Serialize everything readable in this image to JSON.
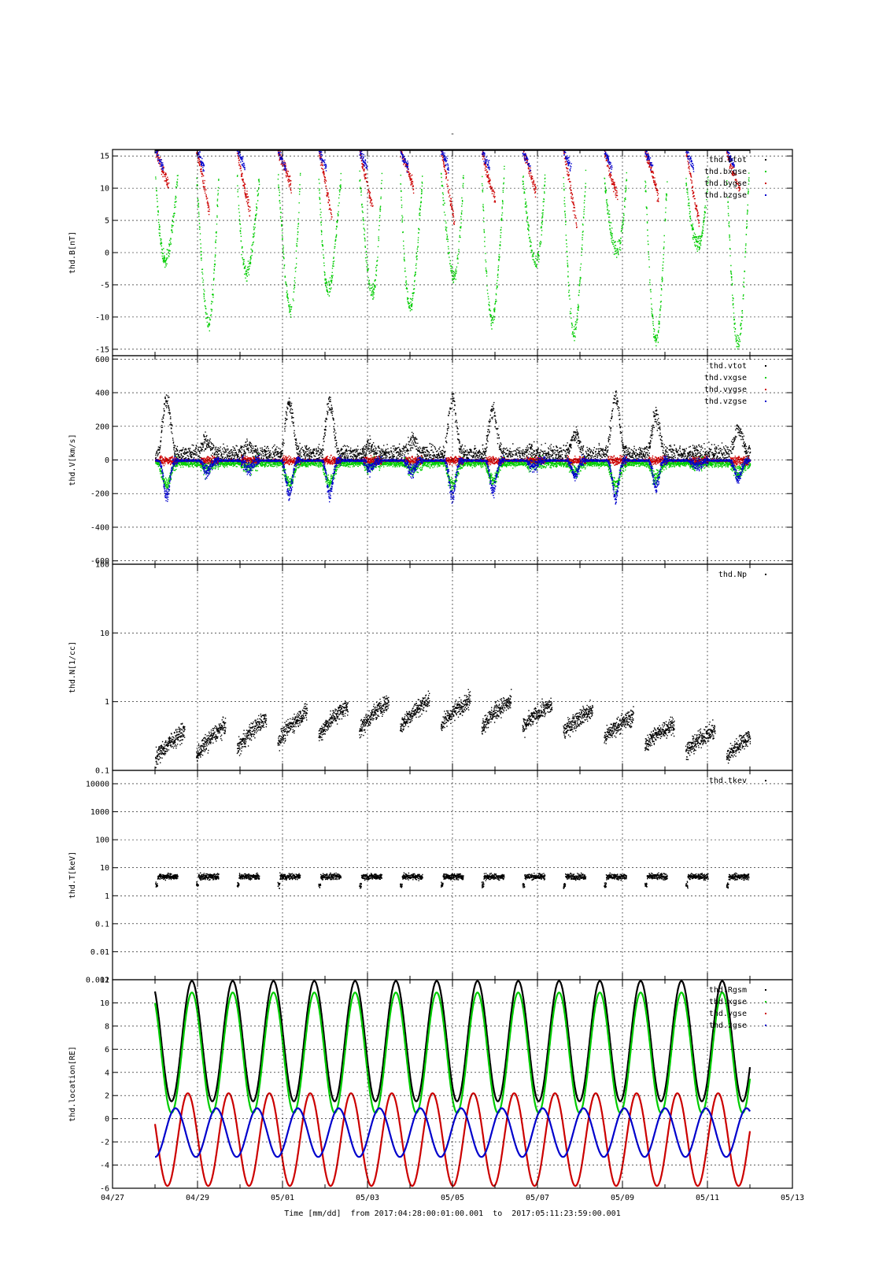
{
  "figure": {
    "title": "-",
    "footer_xlabel": "Time [mm/dd]  from 2017:04:28:00:01:00.001  to  2017:05:11:23:59:00.001",
    "x_ticks": [
      "04/27",
      "04/29",
      "05/01",
      "05/03",
      "05/05",
      "05/07",
      "05/09",
      "05/11",
      "05/13"
    ],
    "x_tick_days": [
      0,
      2,
      4,
      6,
      8,
      10,
      12,
      14,
      16
    ],
    "x_range_days": [
      0,
      16
    ],
    "x_origin": "04/27",
    "data_span_days": [
      1.0,
      15.0
    ]
  },
  "chart_data": [
    {
      "id": "B",
      "type": "scatter",
      "ylabel": "thd.B[nT]",
      "ylim": [
        -16,
        16
      ],
      "y_ticks": [
        -15,
        -10,
        -5,
        0,
        5,
        10,
        15
      ],
      "y_tick_labels": [
        "-15",
        "-10",
        "-5",
        "0",
        "5",
        "10",
        "15"
      ],
      "log": false,
      "grid": true,
      "legend_position": "top-right",
      "series": [
        {
          "name": "thd.btot",
          "color": "#000000"
        },
        {
          "name": "thd.bxgse",
          "color": "#00cc00"
        },
        {
          "name": "thd.bygse",
          "color": "#cc0000"
        },
        {
          "name": "thd.bzgse",
          "color": "#0000cc"
        }
      ]
    },
    {
      "id": "V",
      "type": "scatter",
      "ylabel": "thd.V[km/s]",
      "ylim": [
        -620,
        620
      ],
      "y_ticks": [
        -600,
        -400,
        -200,
        0,
        200,
        400,
        600
      ],
      "y_tick_labels": [
        "-600",
        "-400",
        "-200",
        "0",
        "200",
        "400",
        "600"
      ],
      "log": false,
      "grid": true,
      "legend_position": "top-right",
      "series": [
        {
          "name": "thd.vtot",
          "color": "#000000"
        },
        {
          "name": "thd.vxgse",
          "color": "#00cc00"
        },
        {
          "name": "thd.vygse",
          "color": "#cc0000"
        },
        {
          "name": "thd.vzgse",
          "color": "#0000cc"
        }
      ]
    },
    {
      "id": "N",
      "type": "scatter",
      "ylabel": "thd.N[1/cc]",
      "ylim": [
        0.1,
        100
      ],
      "y_ticks": [
        0.1,
        1,
        10,
        100
      ],
      "y_tick_labels": [
        "0.1",
        "1",
        "10",
        "100"
      ],
      "log": true,
      "grid": true,
      "legend_position": "top-right",
      "series": [
        {
          "name": "thd.Np",
          "color": "#000000"
        }
      ]
    },
    {
      "id": "T",
      "type": "scatter",
      "ylabel": "thd.T[keV]",
      "ylim": [
        0.001,
        30000
      ],
      "y_ticks": [
        0.01,
        0.1,
        1,
        10,
        100,
        1000,
        10000
      ],
      "y_tick_labels": [
        "0.01",
        "0.1",
        "1",
        "10",
        "100",
        "1000",
        "10000"
      ],
      "bottom_label": "0.001",
      "log": true,
      "grid": true,
      "legend_position": "top-right",
      "series": [
        {
          "name": "thd.tkev",
          "color": "#000000"
        }
      ]
    },
    {
      "id": "L",
      "type": "line",
      "ylabel": "thd.location[RE]",
      "ylim": [
        -6,
        12
      ],
      "y_ticks": [
        -6,
        -4,
        -2,
        0,
        2,
        4,
        6,
        8,
        10,
        12
      ],
      "y_tick_labels": [
        "-6",
        "-4",
        "-2",
        "0",
        "2",
        "4",
        "6",
        "8",
        "10",
        "12"
      ],
      "log": false,
      "grid": true,
      "legend_position": "top-right",
      "orbit_period_days": 0.96,
      "series": [
        {
          "name": "thd.Rgsm",
          "color": "#000000"
        },
        {
          "name": "thd.xgse",
          "color": "#00cc00"
        },
        {
          "name": "thd.ygse",
          "color": "#cc0000"
        },
        {
          "name": "thd.zgse",
          "color": "#0000cc"
        }
      ]
    }
  ]
}
